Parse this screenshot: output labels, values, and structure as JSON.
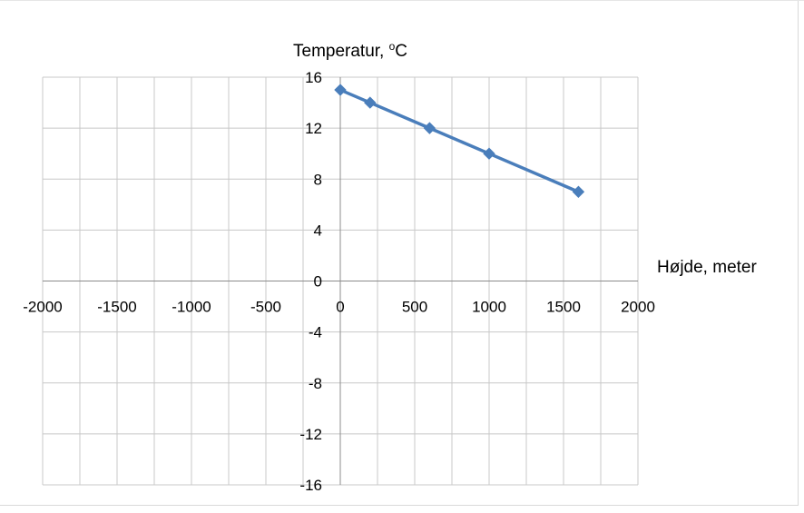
{
  "chart_data": {
    "type": "scatter",
    "xlabel": "Højde, meter",
    "ylabel_text": "Temperatur, ",
    "ylabel_sup": "o",
    "ylabel_unit": "C",
    "xlim": [
      -2000,
      2000
    ],
    "ylim": [
      -16,
      16
    ],
    "x_ticks": [
      -2000,
      -1500,
      -1000,
      -500,
      0,
      500,
      1000,
      1500,
      2000
    ],
    "x_tick_labels": [
      "-2000",
      "-1500",
      "-1000",
      "-500",
      "0",
      "500",
      "1000",
      "1500",
      "2000"
    ],
    "y_ticks": [
      16,
      12,
      8,
      4,
      0,
      -4,
      -8,
      -12,
      -16
    ],
    "y_tick_labels": [
      "16",
      "12",
      "8",
      "4",
      "0",
      "-4",
      "-8",
      "-12",
      "-16"
    ],
    "grid": true,
    "legend": "none",
    "series": [
      {
        "x": [
          0,
          200,
          600,
          1000,
          1600
        ],
        "y": [
          15,
          14,
          12,
          10,
          7
        ],
        "color": "#4a7ebb",
        "marker": "diamond",
        "line": "straight"
      }
    ]
  }
}
